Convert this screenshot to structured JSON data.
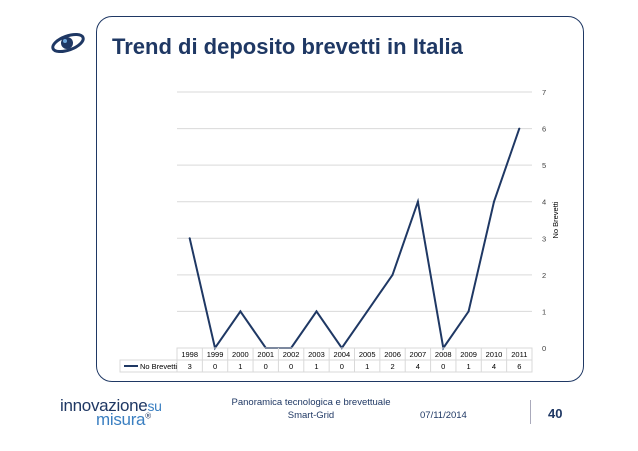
{
  "slide": {
    "title": "Trend di deposito brevetti in Italia",
    "footer_line1": "Panoramica tecnologica e brevettuale",
    "footer_line2": "Smart-Grid",
    "date": "07/11/2014",
    "page_number": "40",
    "brand_line1": "innovazione",
    "brand_su": "su",
    "brand_line2": "misura",
    "brand_reg": "®"
  },
  "colors": {
    "accent": "#1f3864",
    "line": "#1f3864",
    "grid": "#d9d9d9"
  },
  "chart_data": {
    "type": "line",
    "title": "",
    "xlabel": "",
    "ylabel": "No Brevetti",
    "categories": [
      "1998",
      "1999",
      "2000",
      "2001",
      "2002",
      "2003",
      "2004",
      "2005",
      "2006",
      "2007",
      "2008",
      "2009",
      "2010",
      "2011"
    ],
    "series": [
      {
        "name": "No Brevetti",
        "values": [
          3,
          0,
          1,
          0,
          0,
          1,
          0,
          1,
          2,
          4,
          0,
          1,
          4,
          6
        ]
      }
    ],
    "ylim": [
      0,
      7
    ],
    "yticks": [
      0,
      1,
      2,
      3,
      4,
      5,
      6,
      7
    ],
    "grid": true,
    "data_table": true
  }
}
